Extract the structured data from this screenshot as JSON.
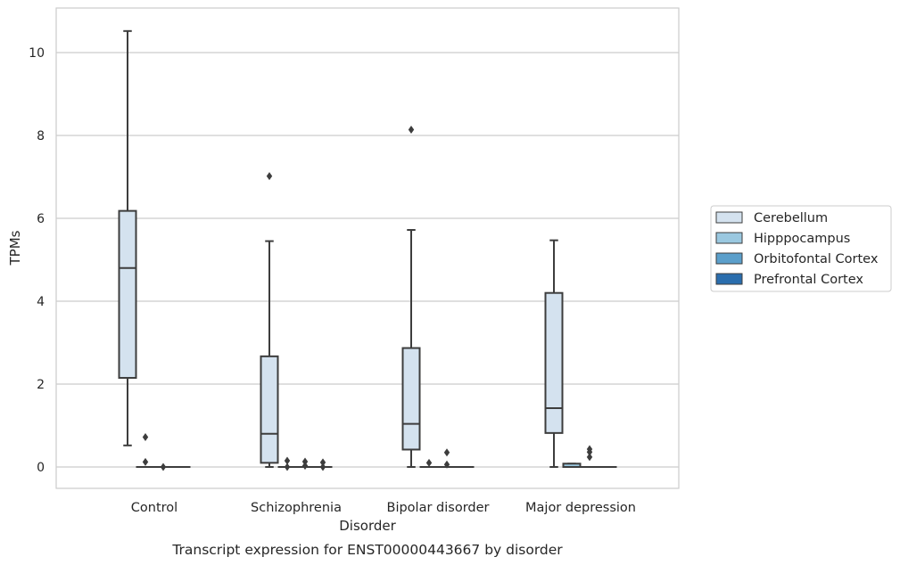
{
  "chart_data": {
    "type": "box",
    "xlabel": "Disorder",
    "ylabel": "TPMs",
    "caption": "Transcript expression for ENST00000443667 by disorder",
    "ylim": [
      -0.5,
      11.1
    ],
    "yticks": [
      0,
      2,
      4,
      6,
      8,
      10
    ],
    "grid": "horizontal",
    "legend_position": "outside right",
    "categories": [
      "Control",
      "Schizophrenia",
      "Bipolar disorder",
      "Major depression"
    ],
    "series": [
      {
        "name": "Cerebellum",
        "color": "#d4e2ef",
        "boxes": [
          {
            "whislo": 0.52,
            "q1": 2.15,
            "med": 4.8,
            "q3": 6.18,
            "whishi": 10.52,
            "fliers": []
          },
          {
            "whislo": 0.0,
            "q1": 0.1,
            "med": 0.8,
            "q3": 2.67,
            "whishi": 5.45,
            "fliers": [
              7.02
            ]
          },
          {
            "whislo": 0.0,
            "q1": 0.42,
            "med": 1.04,
            "q3": 2.87,
            "whishi": 5.72,
            "fliers": [
              8.14
            ]
          },
          {
            "whislo": 0.0,
            "q1": 0.82,
            "med": 1.42,
            "q3": 4.2,
            "whishi": 5.47,
            "fliers": []
          }
        ]
      },
      {
        "name": "Hipppocampus",
        "color": "#9ac8e0",
        "boxes": [
          {
            "whislo": 0,
            "q1": 0,
            "med": 0,
            "q3": 0,
            "whishi": 0,
            "fliers": [
              0.72,
              0.12
            ]
          },
          {
            "whislo": 0,
            "q1": 0,
            "med": 0,
            "q3": 0,
            "whishi": 0,
            "fliers": [
              0.15,
              0.0
            ]
          },
          {
            "whislo": 0,
            "q1": 0,
            "med": 0,
            "q3": 0,
            "whishi": 0,
            "fliers": [
              0.1
            ]
          },
          {
            "whislo": 0,
            "q1": 0,
            "med": 0,
            "q3": 0.08,
            "whishi": 0.08,
            "fliers": []
          }
        ]
      },
      {
        "name": "Orbitofontal Cortex",
        "color": "#5b9fcb",
        "boxes": [
          {
            "whislo": 0,
            "q1": 0,
            "med": 0,
            "q3": 0,
            "whishi": 0,
            "fliers": [
              0.0
            ]
          },
          {
            "whislo": 0,
            "q1": 0,
            "med": 0,
            "q3": 0,
            "whishi": 0,
            "fliers": [
              0.13,
              0.03
            ]
          },
          {
            "whislo": 0,
            "q1": 0,
            "med": 0,
            "q3": 0,
            "whishi": 0,
            "fliers": [
              0.35,
              0.06
            ]
          },
          {
            "whislo": 0,
            "q1": 0,
            "med": 0,
            "q3": 0,
            "whishi": 0,
            "fliers": [
              0.43,
              0.36,
              0.24
            ]
          }
        ]
      },
      {
        "name": "Prefrontal Cortex",
        "color": "#2a6dad",
        "boxes": [
          {
            "whislo": 0,
            "q1": 0,
            "med": 0,
            "q3": 0,
            "whishi": 0,
            "fliers": []
          },
          {
            "whislo": 0,
            "q1": 0,
            "med": 0,
            "q3": 0,
            "whishi": 0,
            "fliers": [
              0.11,
              0.0
            ]
          },
          {
            "whislo": 0,
            "q1": 0,
            "med": 0,
            "q3": 0,
            "whishi": 0,
            "fliers": []
          },
          {
            "whislo": 0,
            "q1": 0,
            "med": 0,
            "q3": 0,
            "whishi": 0,
            "fliers": []
          }
        ]
      }
    ]
  }
}
